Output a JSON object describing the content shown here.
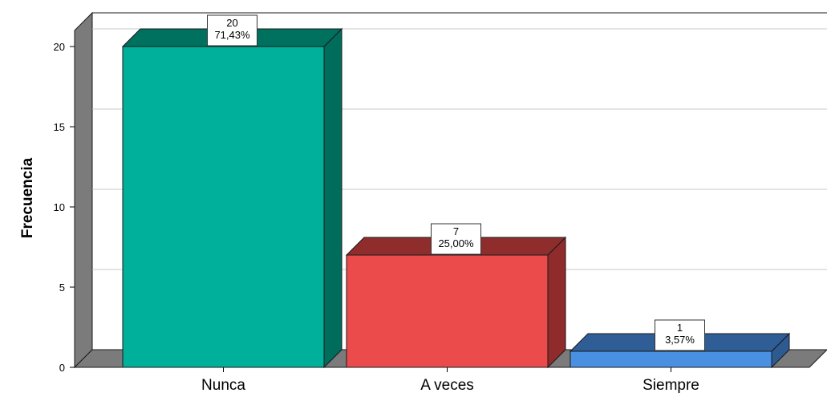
{
  "chart_data": {
    "type": "bar",
    "title": "",
    "xlabel": "",
    "ylabel": "Frecuencia",
    "categories": [
      "Nunca",
      "A veces",
      "Siempre"
    ],
    "values": [
      20,
      7,
      1
    ],
    "percent_labels": [
      "71,43%",
      "25,00%",
      "3,57%"
    ],
    "count_labels": [
      "20",
      "7",
      "1"
    ],
    "ylim": [
      0,
      21
    ],
    "yticks": [
      0,
      5,
      10,
      15,
      20
    ],
    "grid": true,
    "legend": "none",
    "style": "3d",
    "colors": {
      "front": [
        "#00b09b",
        "#eb4b4b",
        "#4a90e2"
      ],
      "top": [
        "#00705f",
        "#8f2d2d",
        "#2f5d95"
      ],
      "side": [
        "#006c5c",
        "#8f2b2b",
        "#2d5a91"
      ],
      "back_wall": "#ffffff",
      "left_wall": "#7b7b7b",
      "floor": "#7b7b7b",
      "gridline": "#c8c8c8",
      "edge": "#1a1a1a"
    }
  }
}
